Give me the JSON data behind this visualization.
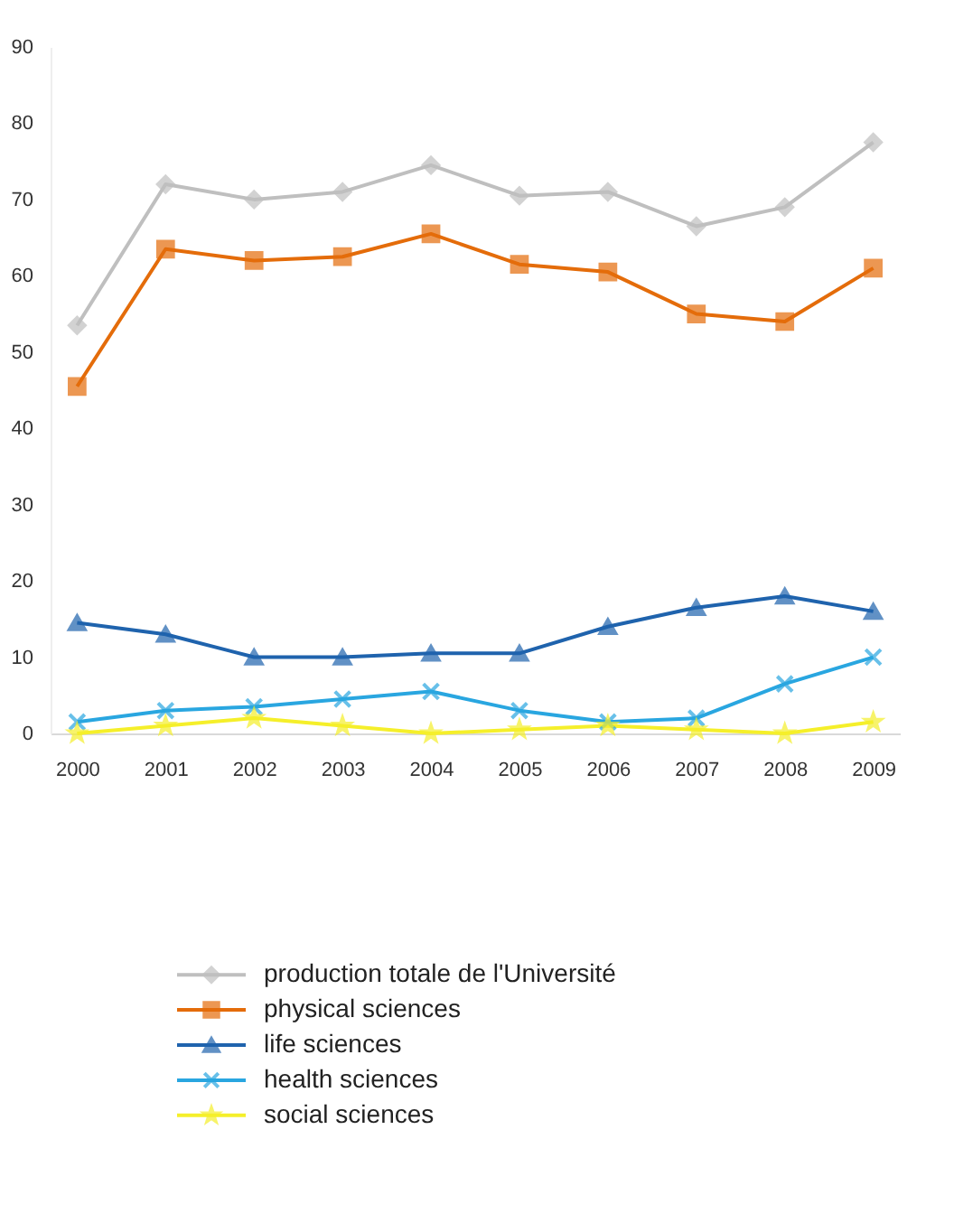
{
  "chart_data": {
    "type": "line",
    "categories": [
      "2000",
      "2001",
      "2002",
      "2003",
      "2004",
      "2005",
      "2006",
      "2007",
      "2008",
      "2009"
    ],
    "ylim": [
      0,
      90
    ],
    "yticks": [
      0,
      10,
      20,
      30,
      40,
      50,
      60,
      70,
      80,
      90
    ],
    "grid": false,
    "legend": "bottom",
    "series": [
      {
        "name": "production totale de l'Université",
        "color": "#bfbfbf",
        "marker": "diamond",
        "values": [
          53.5,
          72,
          70,
          71,
          74.5,
          70.5,
          71,
          66.5,
          69,
          77.5
        ]
      },
      {
        "name": "physical sciences",
        "color": "#e46c0a",
        "marker": "square",
        "values": [
          45.5,
          63.5,
          62,
          62.5,
          65.5,
          61.5,
          60.5,
          55,
          54,
          61
        ]
      },
      {
        "name": "life sciences",
        "color": "#1f63ad",
        "marker": "triangle",
        "values": [
          14.5,
          13,
          10,
          10,
          10.5,
          10.5,
          14,
          16.5,
          18,
          16
        ]
      },
      {
        "name": "health sciences",
        "color": "#29a6e0",
        "marker": "cross",
        "values": [
          1.5,
          3,
          3.5,
          4.5,
          5.5,
          3,
          1.5,
          2,
          6.5,
          10
        ]
      },
      {
        "name": "social sciences",
        "color": "#f5ef2a",
        "marker": "star",
        "values": [
          0,
          1,
          2,
          1,
          0,
          0.5,
          1,
          0.5,
          0,
          1.5
        ]
      }
    ]
  }
}
